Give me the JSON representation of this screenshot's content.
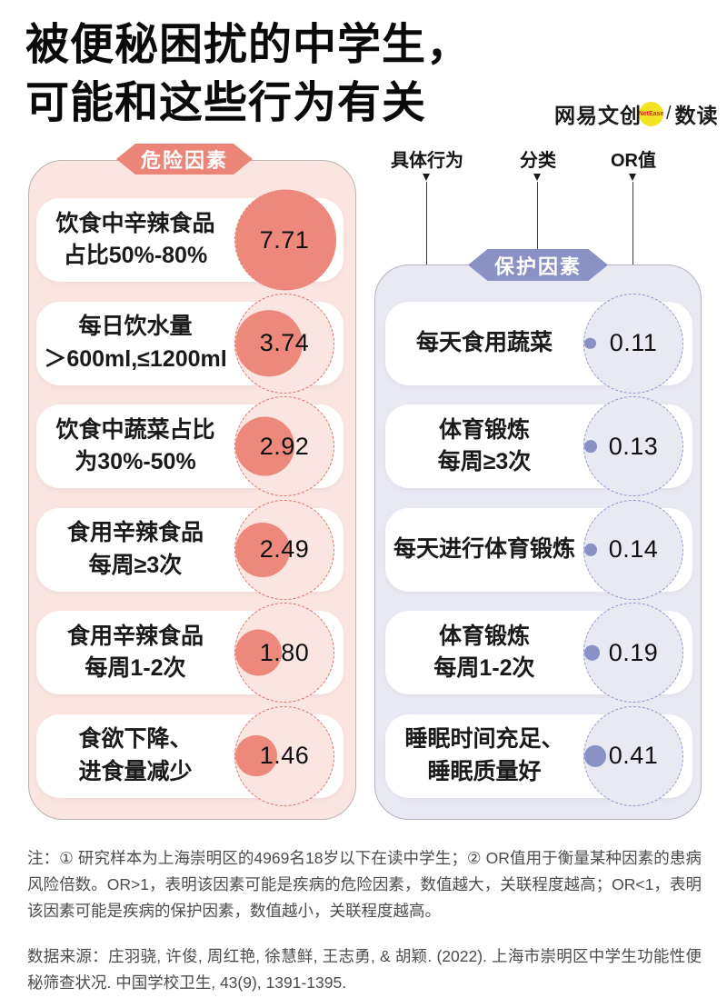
{
  "title": "被便秘困扰的中学生，\n可能和这些行为有关",
  "logo": {
    "brand": "网易文创",
    "badge": "NetEase",
    "slash": "/",
    "product": "数读"
  },
  "legend": {
    "behavior": "具体行为",
    "category": "分类",
    "or": "OR值"
  },
  "risk": {
    "badge": "危险因素",
    "items": [
      {
        "label": "饮食中辛辣食品\n占比50%-80%",
        "value": "7.71"
      },
      {
        "label": "每日饮水量\n＞600ml,≤1200ml",
        "value": "3.74"
      },
      {
        "label": "饮食中蔬菜占比\n为30%-50%",
        "value": "2.92"
      },
      {
        "label": "食用辛辣食品\n每周≥3次",
        "value": "2.49"
      },
      {
        "label": "食用辛辣食品\n每周1-2次",
        "value": "1.80"
      },
      {
        "label": "食欲下降、\n进食量减少",
        "value": "1.46"
      }
    ]
  },
  "protect": {
    "badge": "保护因素",
    "items": [
      {
        "label": "每天食用蔬菜",
        "value": "0.11"
      },
      {
        "label": "体育锻炼\n每周≥3次",
        "value": "0.13"
      },
      {
        "label": "每天进行体育锻炼",
        "value": "0.14"
      },
      {
        "label": "体育锻炼\n每周1-2次",
        "value": "0.19"
      },
      {
        "label": "睡眠时间充足、\n睡眠质量好",
        "value": "0.41"
      }
    ]
  },
  "notes": {
    "note": "注：① 研究样本为上海崇明区的4969名18岁以下在读中学生；② OR值用于衡量某种因素的患病风险倍数。OR>1，表明该因素可能是疾病的危险因素，数值越大，关联程度越高；OR<1，表明该因素可能是疾病的保护因素，数值越小，关联程度越高。",
    "source": "数据来源：庄羽骁, 许俊, 周红艳, 徐慧鲜, 王志勇, & 胡颖. (2022). 上海市崇明区中学生功能性便秘筛查状况. 中国学校卫生, 43(9), 1391-1395."
  },
  "colors": {
    "risk_accent": "#ec897c",
    "risk_panel": "#fae5e1",
    "risk_dash": "#dc7468",
    "protect_accent": "#8991c5",
    "protect_panel": "#e9e9f4",
    "protect_dash": "#9298cf",
    "logo_yellow": "#f2e424",
    "logo_red": "#e02020"
  },
  "chart_data": {
    "type": "scatter",
    "mark": "proportional-area-circles",
    "title": "被便秘困扰的中学生，可能和这些行为有关",
    "value_label": "OR值",
    "reference_circle": "dashed outline = max OR (7.71)",
    "series": [
      {
        "name": "危险因素",
        "categories": [
          "饮食中辛辣食品占比50%-80%",
          "每日饮水量＞600ml,≤1200ml",
          "饮食中蔬菜占比为30%-50%",
          "食用辛辣食品每周≥3次",
          "食用辛辣食品每周1-2次",
          "食欲下降、进食量减少"
        ],
        "values": [
          7.71,
          3.74,
          2.92,
          2.49,
          1.8,
          1.46
        ]
      },
      {
        "name": "保护因素",
        "categories": [
          "每天食用蔬菜",
          "体育锻炼每周≥3次",
          "每天进行体育锻炼",
          "体育锻炼每周1-2次",
          "睡眠时间充足、睡眠质量好"
        ],
        "values": [
          0.11,
          0.13,
          0.14,
          0.19,
          0.41
        ]
      }
    ]
  }
}
